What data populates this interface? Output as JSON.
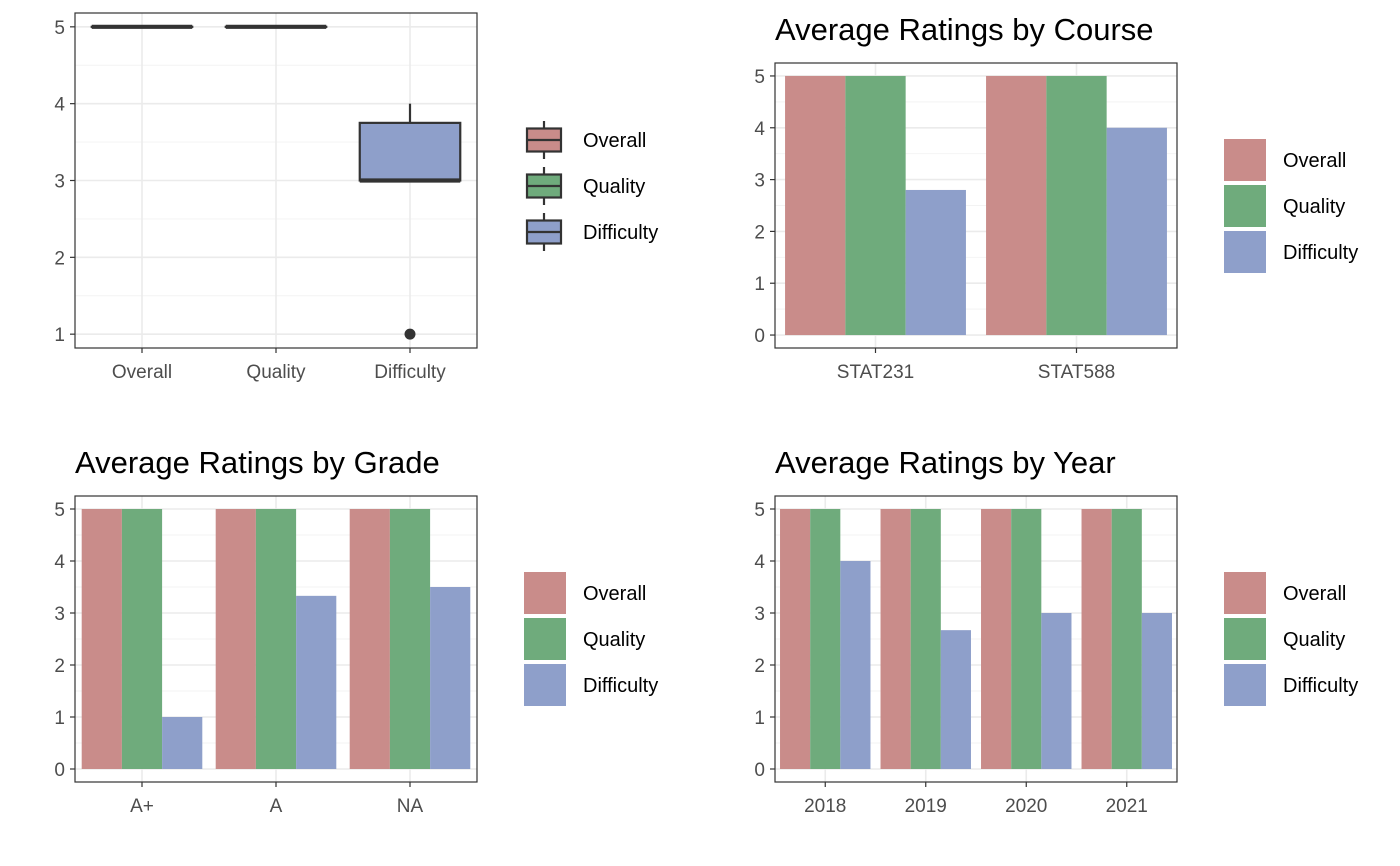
{
  "colors": {
    "Overall": "#c98c8a",
    "Quality": "#6fab7c",
    "Difficulty": "#8e9fca"
  },
  "legend": [
    "Overall",
    "Quality",
    "Difficulty"
  ],
  "chart_data": [
    {
      "type": "boxplot",
      "title": "",
      "categories": [
        "Overall",
        "Quality",
        "Difficulty"
      ],
      "boxes": [
        {
          "name": "Overall",
          "min": 5,
          "q1": 5,
          "median": 5,
          "q3": 5,
          "max": 5,
          "outliers": []
        },
        {
          "name": "Quality",
          "min": 5,
          "q1": 5,
          "median": 5,
          "q3": 5,
          "max": 5,
          "outliers": []
        },
        {
          "name": "Difficulty",
          "min": 3,
          "q1": 3,
          "median": 3,
          "q3": 3.75,
          "max": 4,
          "outliers": [
            1
          ]
        }
      ],
      "ylim": [
        0.82,
        5.18
      ],
      "yticks": [
        1,
        2,
        3,
        4,
        5
      ],
      "grid": true,
      "legend": "right"
    },
    {
      "type": "bar",
      "title": "Average Ratings by Course",
      "categories": [
        "STAT231",
        "STAT588"
      ],
      "series": [
        {
          "name": "Overall",
          "values": [
            5,
            5
          ]
        },
        {
          "name": "Quality",
          "values": [
            5,
            5
          ]
        },
        {
          "name": "Difficulty",
          "values": [
            2.8,
            4
          ]
        }
      ],
      "ylim": [
        -0.25,
        5.25
      ],
      "yticks": [
        0,
        1,
        2,
        3,
        4,
        5
      ],
      "grid": true,
      "legend": "right"
    },
    {
      "type": "bar",
      "title": "Average Ratings by Grade",
      "categories": [
        "A+",
        "A",
        "NA"
      ],
      "series": [
        {
          "name": "Overall",
          "values": [
            5,
            5,
            5
          ]
        },
        {
          "name": "Quality",
          "values": [
            5,
            5,
            5
          ]
        },
        {
          "name": "Difficulty",
          "values": [
            1,
            3.33,
            3.5
          ]
        }
      ],
      "ylim": [
        -0.25,
        5.25
      ],
      "yticks": [
        0,
        1,
        2,
        3,
        4,
        5
      ],
      "grid": true,
      "legend": "right"
    },
    {
      "type": "bar",
      "title": "Average Ratings by Year",
      "categories": [
        "2018",
        "2019",
        "2020",
        "2021"
      ],
      "series": [
        {
          "name": "Overall",
          "values": [
            5,
            5,
            5,
            5
          ]
        },
        {
          "name": "Quality",
          "values": [
            5,
            5,
            5,
            5
          ]
        },
        {
          "name": "Difficulty",
          "values": [
            4,
            2.67,
            3,
            3
          ]
        }
      ],
      "ylim": [
        -0.25,
        5.25
      ],
      "yticks": [
        0,
        1,
        2,
        3,
        4,
        5
      ],
      "grid": true,
      "legend": "right"
    }
  ]
}
